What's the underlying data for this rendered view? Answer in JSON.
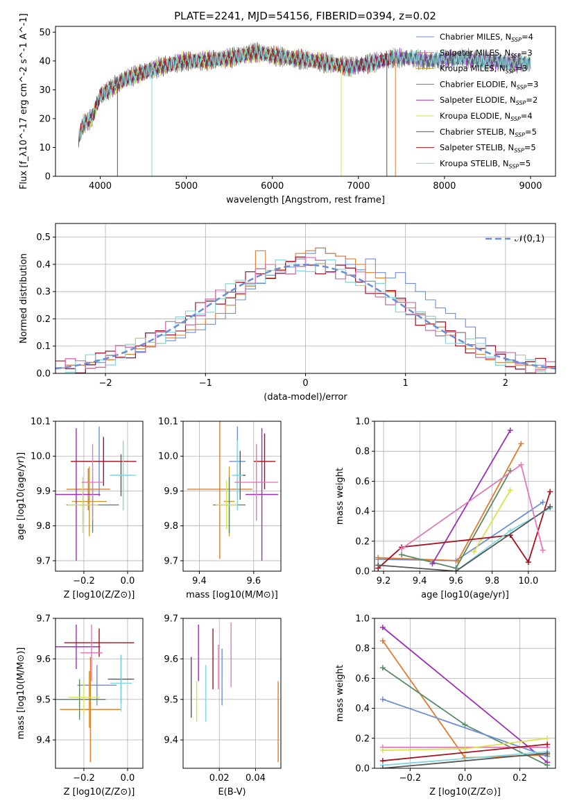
{
  "figure_title": "PLATE=2241, MJD=54156, FIBERID=0394, z=0.02",
  "colors": {
    "Chabrier MILES": "#6b8fd6",
    "Salpeter MILES": "#e07a2c",
    "Kroupa MILES": "#c89a2c",
    "Chabrier ELODIE": "#5a8a64",
    "Salpeter ELODIE": "#9b2fb5",
    "Kroupa ELODIE": "#d8e24a",
    "Chabrier STELIB": "#555555",
    "Salpeter STELIB": "#a5111c",
    "Kroupa STELIB": "#7fd7e0",
    "pink": "#e07ab8",
    "normal": "#6b8fd6"
  },
  "chart_data": [
    {
      "id": "spectrum",
      "type": "line",
      "title": "PLATE=2241, MJD=54156, FIBERID=0394, z=0.02",
      "xlabel": "wavelength [Angstrom, rest frame]",
      "ylabel": "Flux [f_λ10^-17 erg cm^-2 s^-1 A^-1]",
      "xlim": [
        3480,
        9290
      ],
      "ylim": [
        0,
        52
      ],
      "xticks": [
        4000,
        5000,
        6000,
        7000,
        8000,
        9000
      ],
      "yticks": [
        0,
        10,
        20,
        30,
        40,
        50
      ],
      "grid": false,
      "legend_position": "top-right",
      "legend": [
        "Chabrier MILES, N_SSP=4",
        "Salpeter MILES, N_SSP=3",
        "Kroupa MILES, N_SSP=3",
        "Chabrier ELODIE, N_SSP=3",
        "Salpeter ELODIE, N_SSP=2",
        "Kroupa ELODIE, N_SSP=4",
        "Chabrier STELIB, N_SSP=5",
        "Salpeter STELIB, N_SSP=5",
        "Kroupa STELIB, N_SSP=5"
      ],
      "continuum": [
        [
          3750,
          13
        ],
        [
          3800,
          18
        ],
        [
          3900,
          20
        ],
        [
          3950,
          24
        ],
        [
          4000,
          28
        ],
        [
          4100,
          30
        ],
        [
          4300,
          34
        ],
        [
          4500,
          36
        ],
        [
          4700,
          38
        ],
        [
          5000,
          40
        ],
        [
          5200,
          40
        ],
        [
          5500,
          41
        ],
        [
          5800,
          43
        ],
        [
          6000,
          42
        ],
        [
          6200,
          41
        ],
        [
          6500,
          40
        ],
        [
          6700,
          39
        ],
        [
          6900,
          38
        ],
        [
          7100,
          39
        ],
        [
          7400,
          41
        ],
        [
          7600,
          41
        ],
        [
          7800,
          40
        ],
        [
          8200,
          41
        ],
        [
          8500,
          40
        ],
        [
          9000,
          39
        ]
      ]
    },
    {
      "id": "residuals",
      "type": "histogram",
      "xlabel": "(data-model)/error",
      "ylabel": "Normed distribution",
      "xlim": [
        -2.5,
        2.5
      ],
      "ylim": [
        0,
        0.55
      ],
      "xticks": [
        -2,
        -1,
        0,
        1,
        2
      ],
      "yticks": [
        0.0,
        0.1,
        0.2,
        0.3,
        0.4,
        0.5
      ],
      "grid": true,
      "legend_position": "top-right",
      "legend": [
        "𝒩(0,1)"
      ],
      "bin_width": 0.1,
      "bin_start": -2.5,
      "histograms": [
        {
          "color": "Chabrier MILES",
          "values": [
            0.02,
            0.03,
            0.03,
            0.04,
            0.04,
            0.05,
            0.06,
            0.07,
            0.08,
            0.1,
            0.14,
            0.12,
            0.13,
            0.15,
            0.16,
            0.18,
            0.2,
            0.22,
            0.27,
            0.31,
            0.33,
            0.36,
            0.38,
            0.39,
            0.42,
            0.44,
            0.46,
            0.44,
            0.43,
            0.4,
            0.38,
            0.42,
            0.37,
            0.35,
            0.37,
            0.33,
            0.3,
            0.27,
            0.24,
            0.22,
            0.2,
            0.17,
            0.13,
            0.1,
            0.07,
            0.05,
            0.04,
            0.03,
            0.03,
            0.02
          ]
        },
        {
          "color": "Salpeter MILES",
          "values": [
            0.02,
            0.03,
            0.03,
            0.04,
            0.05,
            0.05,
            0.06,
            0.07,
            0.09,
            0.1,
            0.11,
            0.13,
            0.14,
            0.16,
            0.18,
            0.2,
            0.22,
            0.25,
            0.29,
            0.32,
            0.45,
            0.35,
            0.38,
            0.41,
            0.44,
            0.45,
            0.46,
            0.44,
            0.43,
            0.42,
            0.4,
            0.37,
            0.35,
            0.3,
            0.27,
            0.24,
            0.22,
            0.2,
            0.17,
            0.14,
            0.11,
            0.09,
            0.07,
            0.05,
            0.04,
            0.04,
            0.03,
            0.03,
            0.02,
            0.02
          ]
        }
      ],
      "normal_curve": {
        "mu": 0,
        "sigma": 1
      }
    },
    {
      "id": "age_vs_Z",
      "type": "errorbar",
      "xlabel": "Z [log10(Z/Z⊙)]",
      "ylabel": "age [log10(age/yr)]",
      "xlim": [
        -0.33,
        0.07
      ],
      "ylim": [
        9.67,
        10.1
      ],
      "xticks": [
        -0.2,
        0.0
      ],
      "yticks": [
        9.7,
        9.8,
        9.9,
        10.0,
        10.1
      ],
      "grid": true,
      "points": [
        {
          "color": "Chabrier MILES",
          "x": -0.13,
          "xerr": 0.09,
          "y": 9.985,
          "yerr": 0.1
        },
        {
          "color": "Salpeter MILES",
          "x": -0.18,
          "xerr": 0.1,
          "y": 9.905,
          "yerr": 0.06
        },
        {
          "color": "Kroupa MILES",
          "x": -0.175,
          "xerr": 0.08,
          "y": 9.87,
          "yerr": 0.1
        },
        {
          "color": "Chabrier ELODIE",
          "x": -0.16,
          "xerr": 0.12,
          "y": 9.86,
          "yerr": 0.08
        },
        {
          "color": "Salpeter ELODIE",
          "x": -0.235,
          "xerr": 0.11,
          "y": 9.89,
          "yerr": 0.19
        },
        {
          "color": "Kroupa ELODIE",
          "x": -0.205,
          "xerr": 0.07,
          "y": 9.86,
          "yerr": 0.08
        },
        {
          "color": "Chabrier STELIB",
          "x": -0.03,
          "xerr": 0.05,
          "y": 9.945,
          "yerr": 0.06
        },
        {
          "color": "Salpeter STELIB",
          "x": -0.11,
          "xerr": 0.15,
          "y": 9.985,
          "yerr": 0.07
        },
        {
          "color": "Kroupa STELIB",
          "x": -0.02,
          "xerr": 0.06,
          "y": 9.945,
          "yerr": 0.1
        },
        {
          "color": "pink",
          "x": -0.16,
          "xerr": 0.05,
          "y": 9.925,
          "yerr": 0.11
        }
      ]
    },
    {
      "id": "age_vs_mass",
      "type": "errorbar",
      "xlabel": "mass [log10(M/M⊙)]",
      "ylabel": "",
      "xlim": [
        9.34,
        9.7
      ],
      "ylim": [
        9.67,
        10.1
      ],
      "xticks": [
        9.4,
        9.6
      ],
      "yticks": [
        9.7,
        9.8,
        9.9,
        10.0,
        10.1
      ],
      "grid": true,
      "points": [
        {
          "color": "Chabrier MILES",
          "x": 9.54,
          "xerr": 0.03,
          "y": 9.985,
          "yerr": 0.1
        },
        {
          "color": "Salpeter MILES",
          "x": 9.475,
          "xerr": 0.12,
          "y": 9.905,
          "yerr": 0.2
        },
        {
          "color": "Kroupa MILES",
          "x": 9.51,
          "xerr": 0.02,
          "y": 9.87,
          "yerr": 0.1
        },
        {
          "color": "Chabrier ELODIE",
          "x": 9.51,
          "xerr": 0.06,
          "y": 9.86,
          "yerr": 0.08
        },
        {
          "color": "Salpeter ELODIE",
          "x": 9.63,
          "xerr": 0.06,
          "y": 9.89,
          "yerr": 0.19
        },
        {
          "color": "Kroupa ELODIE",
          "x": 9.5,
          "xerr": 0.04,
          "y": 9.86,
          "yerr": 0.07
        },
        {
          "color": "Chabrier STELIB",
          "x": 9.55,
          "xerr": 0.02,
          "y": 9.945,
          "yerr": 0.07
        },
        {
          "color": "Salpeter STELIB",
          "x": 9.64,
          "xerr": 0.04,
          "y": 9.985,
          "yerr": 0.08
        },
        {
          "color": "Kroupa STELIB",
          "x": 9.54,
          "xerr": 0.02,
          "y": 9.945,
          "yerr": 0.1
        },
        {
          "color": "pink",
          "x": 9.61,
          "xerr": 0.08,
          "y": 9.925,
          "yerr": 0.11
        }
      ]
    },
    {
      "id": "mass_weight_vs_age",
      "type": "line",
      "xlabel": "age [log10(age/yr)]",
      "ylabel": "mass weight",
      "xlim": [
        9.15,
        10.15
      ],
      "ylim": [
        0,
        1
      ],
      "xticks": [
        9.2,
        9.4,
        9.6,
        9.8,
        10.0
      ],
      "yticks": [
        0.0,
        0.2,
        0.4,
        0.6,
        0.8,
        1.0
      ],
      "grid": true,
      "series": [
        {
          "color": "Chabrier MILES",
          "x": [
            9.17,
            9.6,
            10.08
          ],
          "y": [
            0.08,
            0.07,
            0.46
          ]
        },
        {
          "color": "Salpeter MILES",
          "x": [
            9.17,
            9.61,
            9.96
          ],
          "y": [
            0.09,
            0.07,
            0.85
          ]
        },
        {
          "color": "Chabrier ELODIE",
          "x": [
            9.3,
            9.6,
            9.9
          ],
          "y": [
            0.11,
            0.02,
            0.67
          ]
        },
        {
          "color": "Salpeter ELODIE",
          "x": [
            9.47,
            9.9
          ],
          "y": [
            0.05,
            0.94
          ]
        },
        {
          "color": "Kroupa ELODIE",
          "x": [
            9.7,
            9.9
          ],
          "y": [
            0.13,
            0.54
          ]
        },
        {
          "color": "Salpeter STELIB",
          "x": [
            9.17,
            9.3,
            9.9,
            10.0,
            10.12
          ],
          "y": [
            0.02,
            0.16,
            0.24,
            0.06,
            0.53
          ]
        },
        {
          "color": "Kroupa STELIB",
          "x": [
            9.6,
            9.9,
            10.12
          ],
          "y": [
            0.0,
            0.27,
            0.42
          ]
        },
        {
          "color": "Chabrier STELIB",
          "x": [
            9.17,
            9.6,
            10.12
          ],
          "y": [
            0.04,
            0.0,
            0.43
          ]
        },
        {
          "color": "pink",
          "x": [
            9.3,
            9.96,
            10.08
          ],
          "y": [
            0.15,
            0.71,
            0.14
          ]
        }
      ]
    },
    {
      "id": "mass_vs_Z",
      "type": "errorbar",
      "xlabel": "Z [log10(Z/Z⊙)]",
      "ylabel": "mass [log10(M/M⊙)]",
      "xlim": [
        -0.33,
        0.07
      ],
      "ylim": [
        9.33,
        9.7
      ],
      "xticks": [
        -0.2,
        0.0
      ],
      "yticks": [
        9.4,
        9.5,
        9.6,
        9.7
      ],
      "grid": true,
      "points": [
        {
          "color": "Chabrier MILES",
          "x": -0.14,
          "xerr": 0.09,
          "y": 9.535,
          "yerr": 0.05
        },
        {
          "color": "Salpeter MILES",
          "x": -0.17,
          "xerr": 0.14,
          "y": 9.475,
          "yerr": 0.13
        },
        {
          "color": "Kroupa MILES",
          "x": -0.175,
          "xerr": 0.07,
          "y": 9.5,
          "yerr": 0.07
        },
        {
          "color": "Chabrier ELODIE",
          "x": -0.22,
          "xerr": 0.12,
          "y": 9.5,
          "yerr": 0.05
        },
        {
          "color": "Salpeter ELODIE",
          "x": -0.235,
          "xerr": 0.11,
          "y": 9.63,
          "yerr": 0.055
        },
        {
          "color": "Kroupa ELODIE",
          "x": -0.2,
          "xerr": 0.07,
          "y": 9.505,
          "yerr": 0.04
        },
        {
          "color": "Chabrier STELIB",
          "x": -0.03,
          "xerr": 0.06,
          "y": 9.55,
          "yerr": 0.06
        },
        {
          "color": "Salpeter STELIB",
          "x": -0.13,
          "xerr": 0.16,
          "y": 9.64,
          "yerr": 0.035
        },
        {
          "color": "Kroupa STELIB",
          "x": -0.03,
          "xerr": 0.05,
          "y": 9.54,
          "yerr": 0.07
        },
        {
          "color": "pink",
          "x": -0.165,
          "xerr": 0.05,
          "y": 9.615,
          "yerr": 0.07
        }
      ]
    },
    {
      "id": "mass_vs_EBV",
      "type": "errorbar",
      "xlabel": "E(B-V)",
      "ylabel": "",
      "xlim": [
        0.0,
        0.054
      ],
      "ylim": [
        9.33,
        9.7
      ],
      "xticks": [
        0.02,
        0.04
      ],
      "yticks": [
        9.4,
        9.5,
        9.6,
        9.7
      ],
      "grid": true,
      "points": [
        {
          "color": "Chabrier STELIB",
          "x": 0.0045,
          "y": 9.53,
          "yerr": 0.075
        },
        {
          "color": "Kroupa ELODIE",
          "x": 0.0075,
          "y": 9.495,
          "yerr": 0.05
        },
        {
          "color": "Salpeter ELODIE",
          "x": 0.0085,
          "y": 9.615,
          "yerr": 0.07
        },
        {
          "color": "Kroupa STELIB",
          "x": 0.0125,
          "y": 9.515,
          "yerr": 0.07
        },
        {
          "color": "Salpeter STELIB",
          "x": 0.0165,
          "y": 9.6,
          "yerr": 0.075
        },
        {
          "color": "pink",
          "x": 0.0195,
          "y": 9.58,
          "yerr": 0.055
        },
        {
          "color": "Chabrier MILES",
          "x": 0.0215,
          "y": 9.555,
          "yerr": 0.07
        },
        {
          "color": "pink",
          "x": 0.0265,
          "y": 9.61,
          "yerr": 0.08
        },
        {
          "color": "Salpeter MILES",
          "x": 0.0525,
          "y": 9.445,
          "yerr": 0.1
        }
      ]
    },
    {
      "id": "mass_weight_vs_Z",
      "type": "line",
      "xlabel": "Z [log10(Z/Z⊙)]",
      "ylabel": "mass weight",
      "xlim": [
        -0.33,
        0.33
      ],
      "ylim": [
        0,
        1
      ],
      "xticks": [
        -0.2,
        0.0,
        0.2
      ],
      "yticks": [
        0.0,
        0.2,
        0.4,
        0.6,
        0.8,
        1.0
      ],
      "grid": true,
      "series": [
        {
          "color": "Salpeter ELODIE",
          "x": [
            -0.3,
            0.3
          ],
          "y": [
            0.94,
            0.04
          ]
        },
        {
          "color": "Salpeter MILES",
          "x": [
            -0.3,
            0.0,
            0.3
          ],
          "y": [
            0.85,
            0.07,
            0.09
          ]
        },
        {
          "color": "Chabrier ELODIE",
          "x": [
            -0.3,
            0.0,
            0.3
          ],
          "y": [
            0.67,
            0.29,
            0.02
          ]
        },
        {
          "color": "Chabrier MILES",
          "x": [
            -0.3,
            0.3
          ],
          "y": [
            0.46,
            0.08
          ]
        },
        {
          "color": "pink",
          "x": [
            -0.3,
            0.3
          ],
          "y": [
            0.14,
            0.14
          ]
        },
        {
          "color": "Kroupa ELODIE",
          "x": [
            -0.3,
            0.0,
            0.3
          ],
          "y": [
            0.12,
            0.13,
            0.2
          ]
        },
        {
          "color": "Salpeter STELIB",
          "x": [
            -0.3,
            0.3
          ],
          "y": [
            0.05,
            0.16
          ]
        },
        {
          "color": "Kroupa STELIB",
          "x": [
            -0.3,
            0.3
          ],
          "y": [
            0.02,
            0.11
          ]
        },
        {
          "color": "Chabrier STELIB",
          "x": [
            -0.3,
            0.3
          ],
          "y": [
            0.0,
            0.1
          ]
        }
      ]
    }
  ]
}
